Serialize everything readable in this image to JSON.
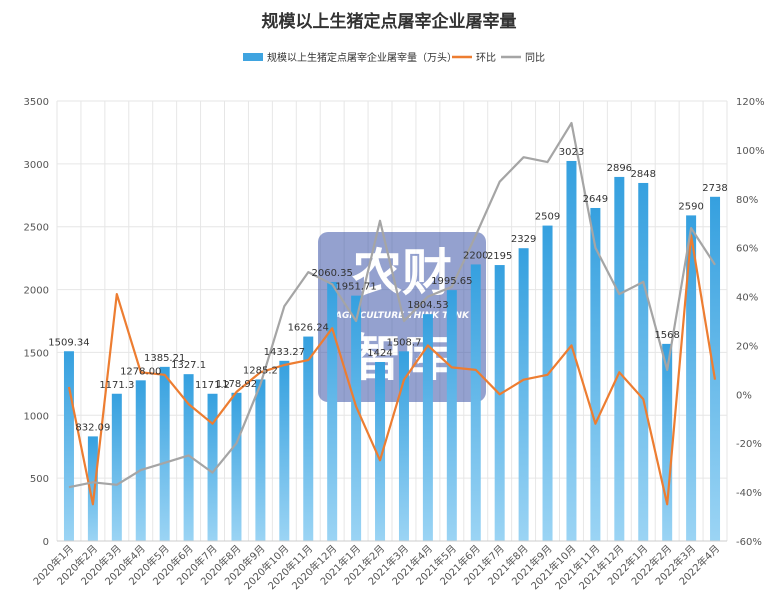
{
  "chart_data": {
    "type": "bar+line",
    "title": "规模以上生猪定点屠宰企业屠宰量",
    "categories": [
      "2020年1月",
      "2020年2月",
      "2020年3月",
      "2020年4月",
      "2020年5月",
      "2020年6月",
      "2020年7月",
      "2020年8月",
      "2020年9月",
      "2020年10月",
      "2020年11月",
      "2020年12月",
      "2021年1月",
      "2021年2月",
      "2021年3月",
      "2021年4月",
      "2021年5月",
      "2021年6月",
      "2021年7月",
      "2021年8月",
      "2021年9月",
      "2021年10月",
      "2021年11月",
      "2021年12月",
      "2022年1月",
      "2022年2月",
      "2022年3月",
      "2022年4月"
    ],
    "bar_series": {
      "name": "规模以上生猪定点屠宰企业屠宰量（万头）",
      "values": [
        1509.34,
        832.09,
        1171.3,
        1278.0,
        1385.21,
        1327.1,
        1171.2,
        1178.92,
        1285.2,
        1433.27,
        1626.24,
        2060.35,
        1951.71,
        1424,
        1508.7,
        1804.53,
        1995.65,
        2200,
        2195,
        2329,
        2509,
        3023,
        2649,
        2896,
        2848,
        1568,
        2590,
        2738
      ],
      "labels": [
        "1509.34",
        "832.09",
        "1171.3",
        "1278.00",
        "1385.21",
        "1327.1",
        "1171.2",
        "1178.92",
        "1285.2",
        "1433.27",
        "1626.24",
        "2060.35",
        "1951.71",
        "1424",
        "1508.7",
        "1804.53",
        "1995.65",
        "2200",
        "2195",
        "2329",
        "2509",
        "3023",
        "2649",
        "2896",
        "2848",
        "1568",
        "2590",
        "2738"
      ]
    },
    "line_series": [
      {
        "name": "环比",
        "color": "#ed7d31",
        "values": [
          3,
          -45,
          41,
          9,
          8,
          -4,
          -12,
          1,
          9,
          12,
          14,
          27,
          -5,
          -27,
          6,
          20,
          11,
          10,
          0,
          6,
          8,
          20,
          -12,
          9,
          -2,
          -45,
          65,
          6
        ]
      },
      {
        "name": "同比",
        "color": "#a5a5a5",
        "values": [
          -38,
          -36,
          -37,
          -31,
          -28,
          -25,
          -32,
          -20,
          4,
          36,
          50,
          45,
          30,
          71,
          30,
          40,
          44,
          65,
          87,
          97,
          95,
          111,
          60,
          41,
          46,
          10,
          68,
          53
        ]
      }
    ],
    "y_left": {
      "min": 0,
      "max": 3500,
      "ticks": [
        "0",
        "500",
        "1000",
        "1500",
        "2000",
        "2500",
        "3000",
        "3500"
      ]
    },
    "y_right": {
      "min": -60,
      "max": 120,
      "ticks": [
        "-60%",
        "-40%",
        "-20%",
        "0%",
        "20%",
        "40%",
        "60%",
        "80%",
        "100%",
        "120%"
      ]
    },
    "grid": true,
    "legend_position": "top"
  },
  "colors": {
    "bar": "#3fa4e0",
    "bar_light": "#8dcdf2",
    "mom": "#ed7d31",
    "yoy": "#a5a5a5",
    "grid": "#e6e6e6"
  },
  "watermark": {
    "line1": "农财",
    "line2": "智库",
    "subtitle": "AGRICULTURE THINK TANK"
  }
}
